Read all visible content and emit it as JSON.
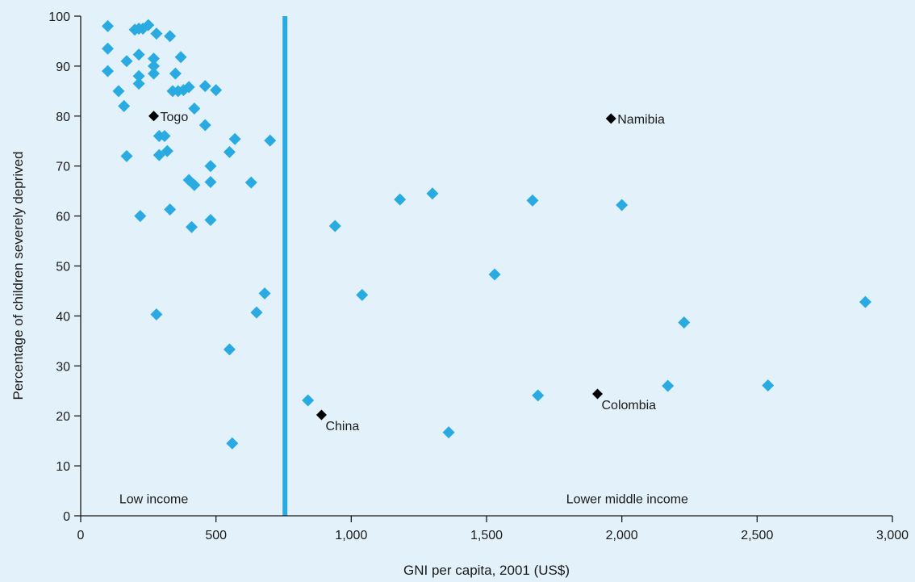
{
  "chart_data": {
    "type": "scatter",
    "xlabel": "GNI per capita, 2001 (US$)",
    "ylabel": "Percentage of children severely deprived",
    "xlim": [
      0,
      3000
    ],
    "ylim": [
      0,
      100
    ],
    "grid": false,
    "x_ticks": [
      0,
      500,
      1000,
      1500,
      2000,
      2500,
      3000
    ],
    "x_tick_labels": [
      "0",
      "500",
      "1,000",
      "1,500",
      "2,000",
      "2,500",
      "3,000"
    ],
    "y_ticks": [
      0,
      10,
      20,
      30,
      40,
      50,
      60,
      70,
      80,
      90,
      100
    ],
    "y_tick_labels": [
      "0",
      "10",
      "20",
      "30",
      "40",
      "50",
      "60",
      "70",
      "80",
      "90",
      "100"
    ],
    "threshold": {
      "x": 755,
      "color": "#29abe2"
    },
    "regions": [
      {
        "label": "Low income",
        "x": 270,
        "y": 2.5
      },
      {
        "label": "Lower middle income",
        "x": 2020,
        "y": 2.5
      }
    ],
    "colors": {
      "default": "#29abe2",
      "highlighted": "#000000"
    },
    "points": [
      {
        "x": 100,
        "y": 98
      },
      {
        "x": 100,
        "y": 93.5
      },
      {
        "x": 100,
        "y": 89
      },
      {
        "x": 140,
        "y": 85
      },
      {
        "x": 160,
        "y": 82
      },
      {
        "x": 170,
        "y": 91
      },
      {
        "x": 170,
        "y": 72
      },
      {
        "x": 200,
        "y": 97.3
      },
      {
        "x": 215,
        "y": 97.5
      },
      {
        "x": 230,
        "y": 97.5
      },
      {
        "x": 250,
        "y": 98.2
      },
      {
        "x": 215,
        "y": 92.3
      },
      {
        "x": 215,
        "y": 88
      },
      {
        "x": 215,
        "y": 86.5
      },
      {
        "x": 220,
        "y": 60
      },
      {
        "x": 270,
        "y": 91.5
      },
      {
        "x": 270,
        "y": 90
      },
      {
        "x": 270,
        "y": 88.5
      },
      {
        "x": 280,
        "y": 96.5
      },
      {
        "x": 280,
        "y": 40.3
      },
      {
        "x": 290,
        "y": 76
      },
      {
        "x": 290,
        "y": 72.2
      },
      {
        "x": 310,
        "y": 76
      },
      {
        "x": 320,
        "y": 73
      },
      {
        "x": 330,
        "y": 96
      },
      {
        "x": 330,
        "y": 61.3
      },
      {
        "x": 340,
        "y": 85
      },
      {
        "x": 350,
        "y": 88.5
      },
      {
        "x": 360,
        "y": 85
      },
      {
        "x": 370,
        "y": 91.8
      },
      {
        "x": 380,
        "y": 85.2
      },
      {
        "x": 400,
        "y": 85.8
      },
      {
        "x": 400,
        "y": 67.2
      },
      {
        "x": 410,
        "y": 57.8
      },
      {
        "x": 420,
        "y": 81.5
      },
      {
        "x": 420,
        "y": 66.2
      },
      {
        "x": 460,
        "y": 86
      },
      {
        "x": 460,
        "y": 78.2
      },
      {
        "x": 480,
        "y": 70
      },
      {
        "x": 480,
        "y": 66.8
      },
      {
        "x": 480,
        "y": 59.2
      },
      {
        "x": 500,
        "y": 85.2
      },
      {
        "x": 550,
        "y": 72.8
      },
      {
        "x": 550,
        "y": 33.3
      },
      {
        "x": 560,
        "y": 14.5
      },
      {
        "x": 570,
        "y": 75.4
      },
      {
        "x": 630,
        "y": 66.7
      },
      {
        "x": 650,
        "y": 40.7
      },
      {
        "x": 680,
        "y": 44.5
      },
      {
        "x": 700,
        "y": 75.1
      },
      {
        "x": 840,
        "y": 23.1
      },
      {
        "x": 940,
        "y": 58
      },
      {
        "x": 1040,
        "y": 44.2
      },
      {
        "x": 1180,
        "y": 63.3
      },
      {
        "x": 1300,
        "y": 64.5
      },
      {
        "x": 1360,
        "y": 16.7
      },
      {
        "x": 1530,
        "y": 48.3
      },
      {
        "x": 1670,
        "y": 63.1
      },
      {
        "x": 1690,
        "y": 24.1
      },
      {
        "x": 2000,
        "y": 62.2
      },
      {
        "x": 2170,
        "y": 26
      },
      {
        "x": 2230,
        "y": 38.7
      },
      {
        "x": 2540,
        "y": 26.1
      },
      {
        "x": 2900,
        "y": 42.8
      },
      {
        "x": 270,
        "y": 80,
        "label": "Togo",
        "highlight": true
      },
      {
        "x": 1960,
        "y": 79.5,
        "label": "Namibia",
        "highlight": true
      },
      {
        "x": 890,
        "y": 20.2,
        "label": "China",
        "highlight": true
      },
      {
        "x": 1910,
        "y": 24.4,
        "label": "Colombia",
        "highlight": true
      }
    ]
  }
}
